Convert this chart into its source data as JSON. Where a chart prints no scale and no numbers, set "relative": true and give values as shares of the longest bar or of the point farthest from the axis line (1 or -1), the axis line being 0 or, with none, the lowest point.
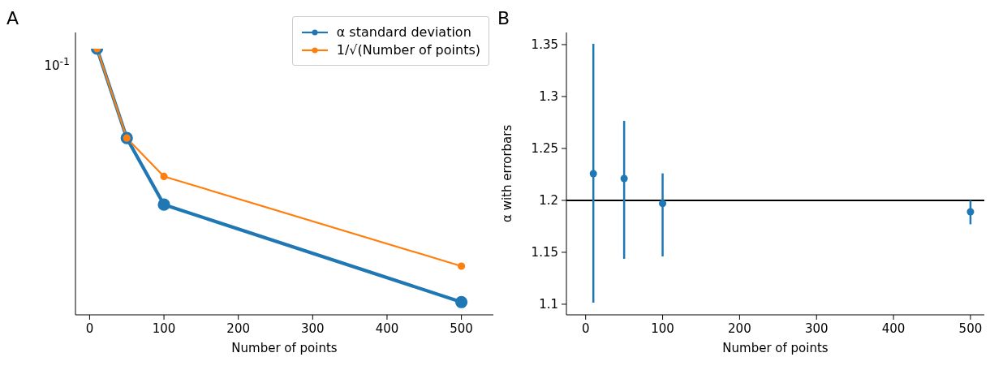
{
  "chart_data": [
    {
      "type": "line",
      "annotations": [
        "A",
        "10$^{-1}$"
      ],
      "relative": true,
      "xlabel": "Number of points",
      "x": [
        10,
        50,
        100,
        500
      ],
      "series": [
        {
          "name": "α standard deviation",
          "color": "#1f77b4",
          "values": [
            1,
            0.664,
            0.414,
            0.048
          ]
        },
        {
          "name": "1/√(Number of points)",
          "color": "#ff7f0e",
          "values": [
            1,
            0.664,
            0.52,
            0.183
          ]
        }
      ],
      "xlim": [
        -19,
        543
      ],
      "xticks": [
        0,
        100,
        200,
        300,
        400,
        500
      ],
      "legend": "top right",
      "marker": "circle",
      "line_style": "solid"
    },
    {
      "type": "scatter",
      "annotations": [
        "B"
      ],
      "xlabel": "Number of points",
      "ylabel": "α with errorbars",
      "x": [
        10,
        50,
        100,
        500
      ],
      "series": [
        {
          "color": "#1f77b4",
          "values": [
            1.2258,
            1.2211,
            1.197,
            1.189
          ],
          "errors": [
            [
              1.1016,
              1.3508
            ],
            [
              1.1437,
              1.2766
            ],
            [
              1.146,
              1.226
            ],
            [
              1.177,
              1.2
            ]
          ]
        }
      ],
      "xlim": [
        -25,
        518
      ],
      "xticks": [
        0,
        100,
        200,
        300,
        400,
        500
      ],
      "ylim": [
        1.0898,
        1.3617
      ],
      "yticks": [
        1.1,
        1.15,
        1.2,
        1.25,
        1.3,
        1.35
      ],
      "ref_lines": [
        {
          "axis": "y",
          "value": 1.2,
          "color": "#000000"
        }
      ],
      "marker": "circle"
    }
  ]
}
